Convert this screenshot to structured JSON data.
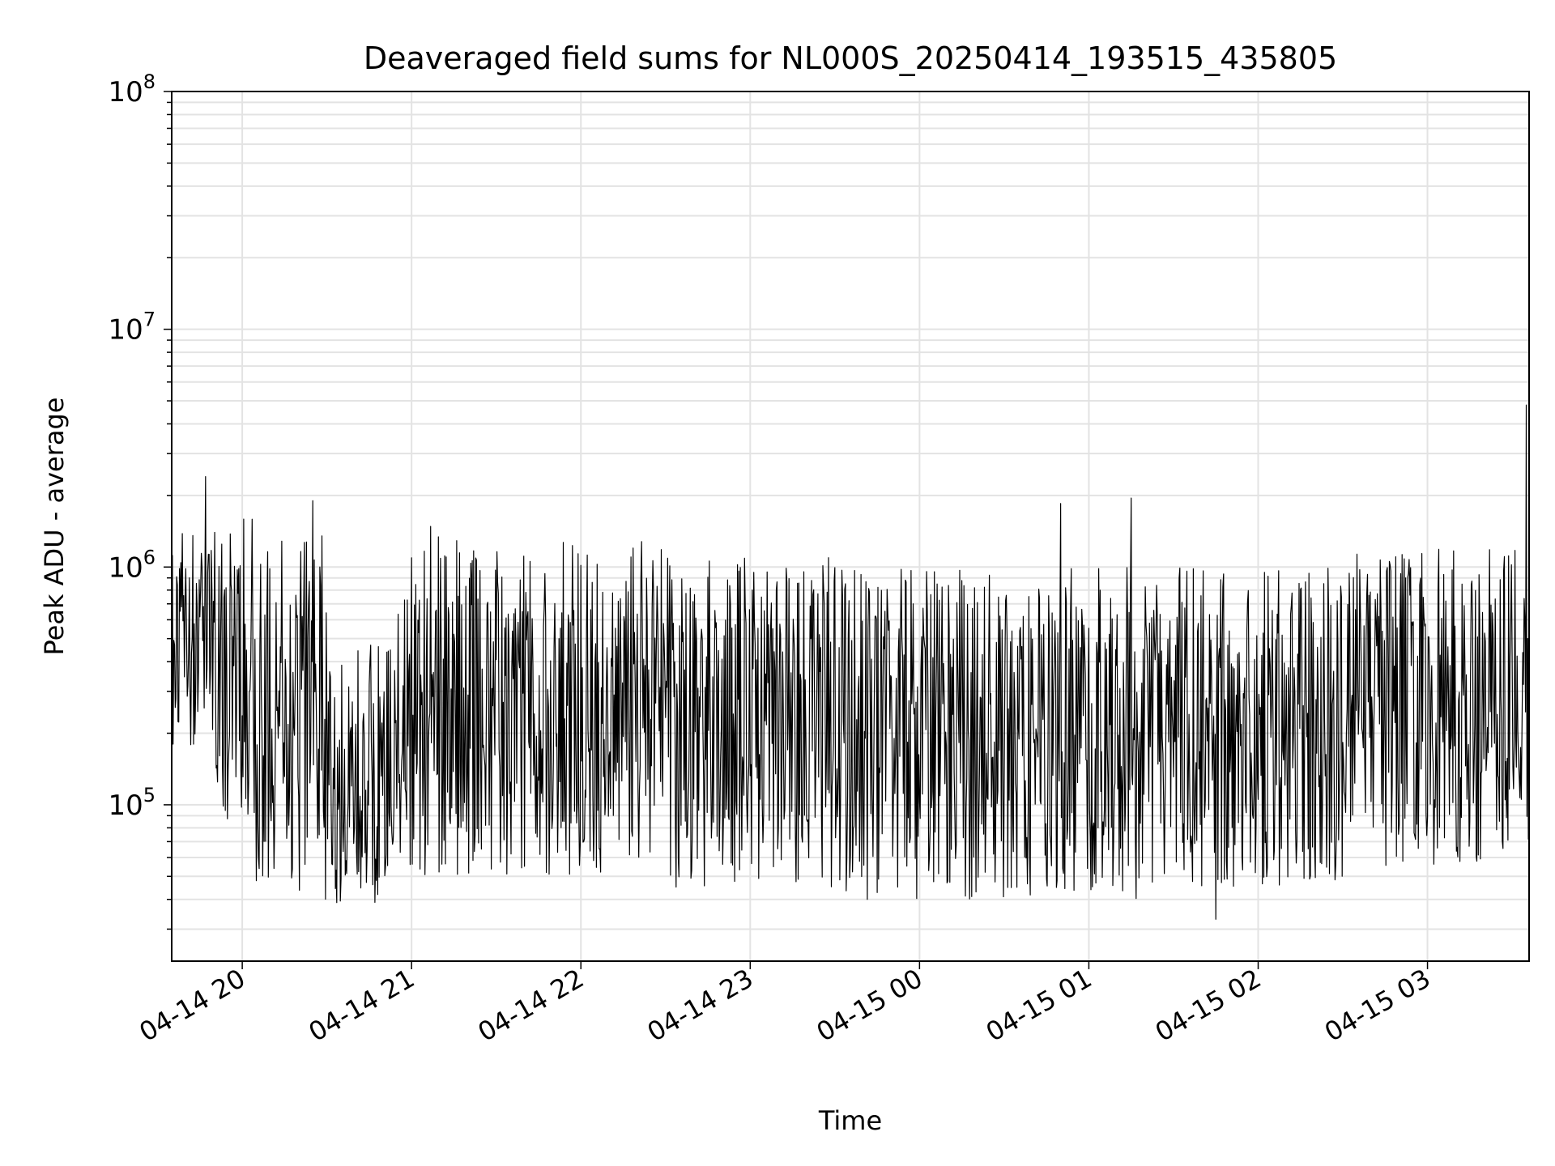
{
  "chart_data": {
    "type": "line",
    "title": "Deaveraged field sums for NL000S_20250414_193515_435805",
    "xlabel": "Time",
    "ylabel": "Peak ADU - average",
    "yscale": "log",
    "ylim": [
      22000,
      100000000
    ],
    "xlim": [
      "2025-04-14 19:35",
      "2025-04-15 03:36"
    ],
    "grid": true,
    "line_color": "#000000",
    "grid_color": "#e3e3e3",
    "x_ticks": [
      {
        "label": "04-14 20",
        "time": "2025-04-14 20:00"
      },
      {
        "label": "04-14 21",
        "time": "2025-04-14 21:00"
      },
      {
        "label": "04-14 22",
        "time": "2025-04-14 22:00"
      },
      {
        "label": "04-14 23",
        "time": "2025-04-14 23:00"
      },
      {
        "label": "04-15 00",
        "time": "2025-04-15 00:00"
      },
      {
        "label": "04-15 01",
        "time": "2025-04-15 01:00"
      },
      {
        "label": "04-15 02",
        "time": "2025-04-15 02:00"
      },
      {
        "label": "04-15 03",
        "time": "2025-04-15 03:00"
      }
    ],
    "y_ticks": [
      {
        "base": "10",
        "exp": "5",
        "value": 100000
      },
      {
        "base": "10",
        "exp": "6",
        "value": 1000000
      },
      {
        "base": "10",
        "exp": "7",
        "value": 10000000
      },
      {
        "base": "10",
        "exp": "8",
        "value": 100000000
      }
    ],
    "series": [
      {
        "segments": [
          {
            "start": "2025-04-14 19:35",
            "end": "2025-04-14 19:50",
            "low": 150000,
            "high": 1400000
          },
          {
            "start": "2025-04-14 19:50",
            "end": "2025-04-14 20:05",
            "low": 80000,
            "high": 1600000
          },
          {
            "start": "2025-04-14 20:05",
            "end": "2025-04-14 20:30",
            "low": 40000,
            "high": 1500000
          },
          {
            "start": "2025-04-14 20:30",
            "end": "2025-04-14 20:55",
            "low": 38000,
            "high": 500000
          },
          {
            "start": "2025-04-14 20:55",
            "end": "2025-04-14 21:30",
            "low": 50000,
            "high": 1500000
          },
          {
            "start": "2025-04-14 21:30",
            "end": "2025-04-14 22:30",
            "low": 50000,
            "high": 1300000
          },
          {
            "start": "2025-04-14 22:30",
            "end": "2025-04-14 23:30",
            "low": 45000,
            "high": 1100000
          },
          {
            "start": "2025-04-14 23:30",
            "end": "2025-04-15 00:30",
            "low": 40000,
            "high": 1000000
          },
          {
            "start": "2025-04-15 00:30",
            "end": "2025-04-15 01:30",
            "low": 40000,
            "high": 1000000
          },
          {
            "start": "2025-04-15 01:30",
            "end": "2025-04-15 02:30",
            "low": 45000,
            "high": 1000000
          },
          {
            "start": "2025-04-15 02:30",
            "end": "2025-04-15 03:36",
            "low": 55000,
            "high": 1200000
          }
        ],
        "spikes": [
          {
            "time": "2025-04-14 19:47",
            "value": 2400000
          },
          {
            "time": "2025-04-14 20:25",
            "value": 1900000
          },
          {
            "time": "2025-04-15 00:50",
            "value": 1850000
          },
          {
            "time": "2025-04-15 01:15",
            "value": 1950000
          },
          {
            "time": "2025-04-15 01:45",
            "value": 33000
          },
          {
            "time": "2025-04-15 03:35",
            "value": 4800000
          }
        ]
      }
    ]
  }
}
